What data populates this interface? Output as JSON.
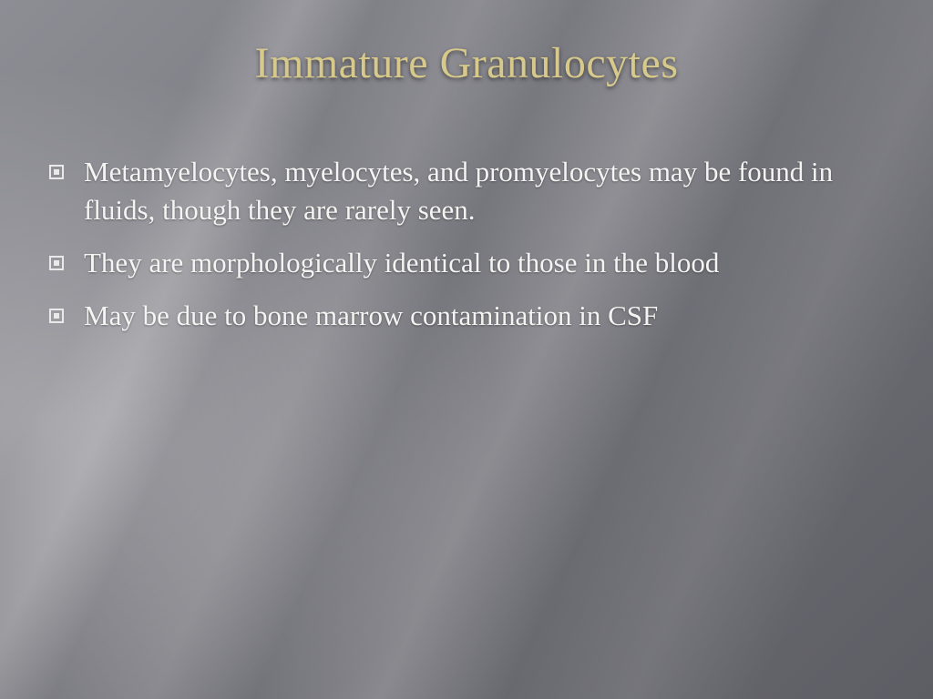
{
  "slide": {
    "title": "Immature Granulocytes",
    "title_color": "#d6c98b",
    "title_fontsize": 48,
    "body_color": "#f4f4f2",
    "body_fontsize": 31,
    "background_base": "#77777e",
    "bullets": [
      {
        "text": "Metamyelocytes, myelocytes, and promyelocytes may be found in fluids, though they are rarely seen."
      },
      {
        "text": "They are morphologically identical to those in the blood"
      },
      {
        "text": "May be due to bone marrow contamination in CSF"
      }
    ]
  }
}
